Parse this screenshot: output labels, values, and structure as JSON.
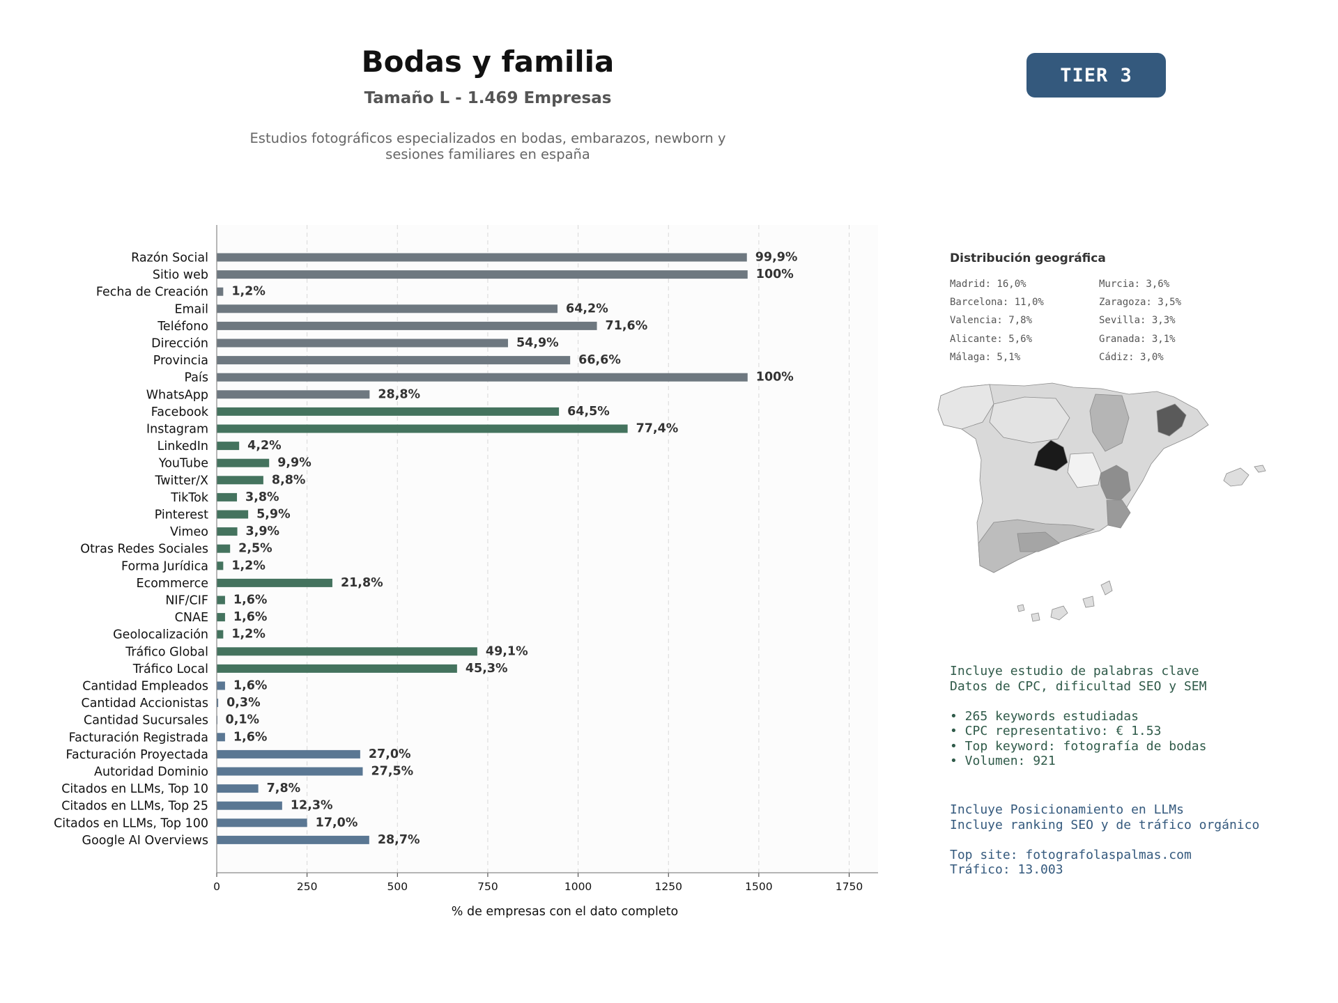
{
  "header": {
    "title": "Bodas y familia",
    "subtitle": "Tamaño L - 1.469 Empresas",
    "description": "Estudios fotográficos especializados en bodas, embarazos, newborn y sesiones familiares en españa",
    "tier": "TIER 3"
  },
  "chart_data": {
    "type": "bar",
    "orientation": "horizontal",
    "xlabel": "% de empresas con el dato completo",
    "xlim": [
      0,
      1830
    ],
    "xticks": [
      0,
      250,
      500,
      750,
      1000,
      1250,
      1500,
      1750
    ],
    "grid": "x-dashed",
    "categories": [
      "Razón Social",
      "Sitio web",
      "Fecha de Creación",
      "Email",
      "Teléfono",
      "Dirección",
      "Provincia",
      "País",
      "WhatsApp",
      "Facebook",
      "Instagram",
      "LinkedIn",
      "YouTube",
      "Twitter/X",
      "TikTok",
      "Pinterest",
      "Vimeo",
      "Otras Redes Sociales",
      "Forma Jurídica",
      "Ecommerce",
      "NIF/CIF",
      "CNAE",
      "Geolocalización",
      "Tráfico Global",
      "Tráfico Local",
      "Cantidad Empleados",
      "Cantidad Accionistas",
      "Cantidad Sucursales",
      "Facturación Registrada",
      "Facturación Proyectada",
      "Autoridad Dominio",
      "Citados en LLMs, Top 10",
      "Citados en LLMs, Top 25",
      "Citados en LLMs, Top 100",
      "Google AI Overviews"
    ],
    "values": [
      1467,
      1469,
      18,
      943,
      1052,
      806,
      978,
      1469,
      423,
      947,
      1137,
      62,
      145,
      129,
      56,
      87,
      57,
      37,
      18,
      320,
      23,
      23,
      18,
      721,
      665,
      23,
      4,
      1,
      23,
      397,
      404,
      115,
      181,
      250,
      422
    ],
    "labels": [
      "99,9%",
      "100%",
      "1,2%",
      "64,2%",
      "71,6%",
      "54,9%",
      "66,6%",
      "100%",
      "28,8%",
      "64,5%",
      "77,4%",
      "4,2%",
      "9,9%",
      "8,8%",
      "3,8%",
      "5,9%",
      "3,9%",
      "2,5%",
      "1,2%",
      "21,8%",
      "1,6%",
      "1,6%",
      "1,2%",
      "49,1%",
      "45,3%",
      "1,6%",
      "0,3%",
      "0,1%",
      "1,6%",
      "27,0%",
      "27,5%",
      "7,8%",
      "12,3%",
      "17,0%",
      "28,7%"
    ],
    "groups": [
      "gray",
      "gray",
      "gray",
      "gray",
      "gray",
      "gray",
      "gray",
      "gray",
      "gray",
      "green",
      "green",
      "green",
      "green",
      "green",
      "green",
      "green",
      "green",
      "green",
      "green",
      "green",
      "green",
      "green",
      "green",
      "green",
      "green",
      "blue",
      "blue",
      "blue",
      "blue",
      "blue",
      "blue",
      "blue",
      "blue",
      "blue",
      "blue"
    ],
    "colors": {
      "gray": "#6e7880",
      "green": "#44735e",
      "blue": "#5a7793"
    }
  },
  "geo": {
    "title": "Distribución geográfica",
    "col1": [
      "Madrid: 16,0%",
      "Barcelona: 11,0%",
      "Valencia: 7,8%",
      "Alicante: 5,6%",
      "Málaga: 5,1%"
    ],
    "col2": [
      "Murcia: 3,6%",
      "Zaragoza: 3,5%",
      "Sevilla: 3,3%",
      "Granada: 3,1%",
      "Cádiz: 3,0%"
    ]
  },
  "info": {
    "seo": "Incluye estudio de palabras clave\nDatos de CPC, dificultad SEO y SEM\n\n• 265 keywords estudiadas\n• CPC representativo: € 1.53\n• Top keyword: fotografía de bodas\n• Volumen: 921",
    "llm": "Incluye Posicionamiento en LLMs\nIncluye ranking SEO y de tráfico orgánico\n\nTop site: fotografolaspalmas.com\nTráfico: 13.003"
  }
}
